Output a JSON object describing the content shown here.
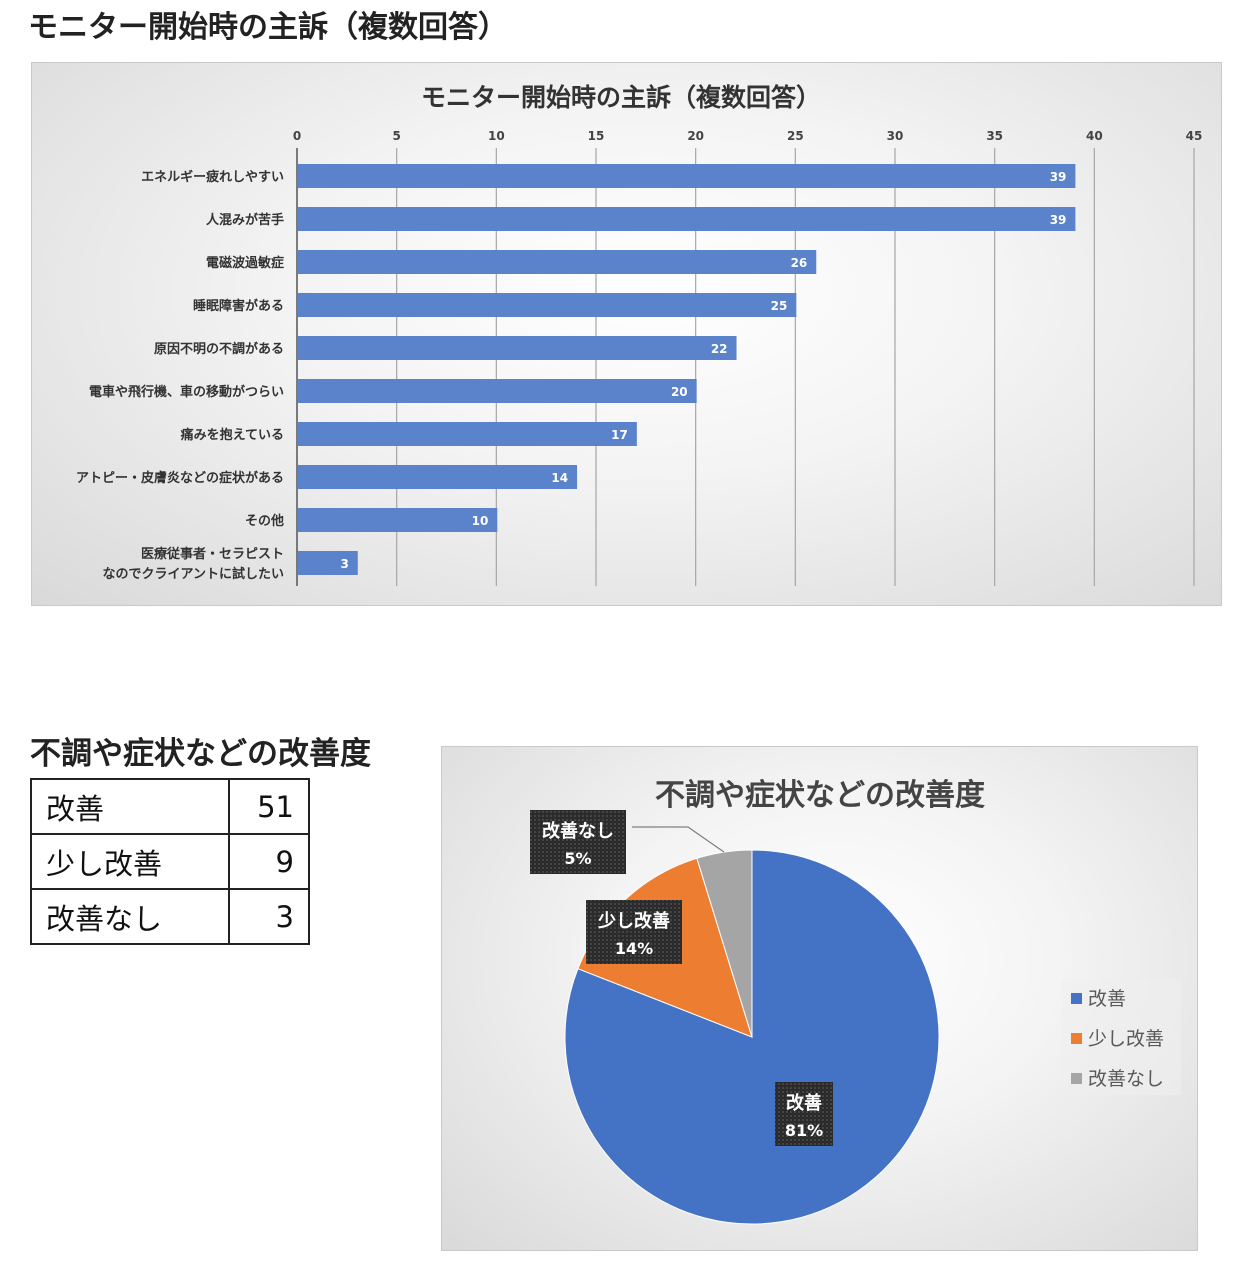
{
  "headings": {
    "bar": "モニター開始時の主訴（複数回答）",
    "pie": "不調や症状などの改善度"
  },
  "table": {
    "rows": [
      {
        "label": "改善",
        "value": "51"
      },
      {
        "label": "少し改善",
        "value": "9"
      },
      {
        "label": "改善なし",
        "value": "3"
      }
    ]
  },
  "colors": {
    "bar": "#5b83cc",
    "improved": "#4472c4",
    "slightly": "#ed7d31",
    "none": "#a5a5a5"
  },
  "chart_data": [
    {
      "type": "bar",
      "orientation": "horizontal",
      "title": "モニター開始時の主訴（複数回答）",
      "categories": [
        [
          "エネルギー疲れしやすい"
        ],
        [
          "人混みが苦手"
        ],
        [
          "電磁波過敏症"
        ],
        [
          "睡眠障害がある"
        ],
        [
          "原因不明の不調がある"
        ],
        [
          "電車や飛行機、車の移動がつらい"
        ],
        [
          "痛みを抱えている"
        ],
        [
          "アトピー・皮膚炎などの症状がある"
        ],
        [
          "その他"
        ],
        [
          "医療従事者・セラピスト",
          "なのでクライアントに試したい"
        ]
      ],
      "values": [
        39,
        39,
        26,
        25,
        22,
        20,
        17,
        14,
        10,
        3
      ],
      "xlim": [
        0,
        45
      ],
      "ticks": [
        0,
        5,
        10,
        15,
        20,
        25,
        30,
        35,
        40,
        45
      ],
      "axis_position": "top",
      "grid": true,
      "data_labels": true
    },
    {
      "type": "pie",
      "title": "不調や症状などの改善度",
      "labels": [
        "改善",
        "少し改善",
        "改善なし"
      ],
      "values": [
        51,
        9,
        3
      ],
      "percent_labels": [
        "81%",
        "14%",
        "5%"
      ],
      "legend": "right"
    }
  ]
}
